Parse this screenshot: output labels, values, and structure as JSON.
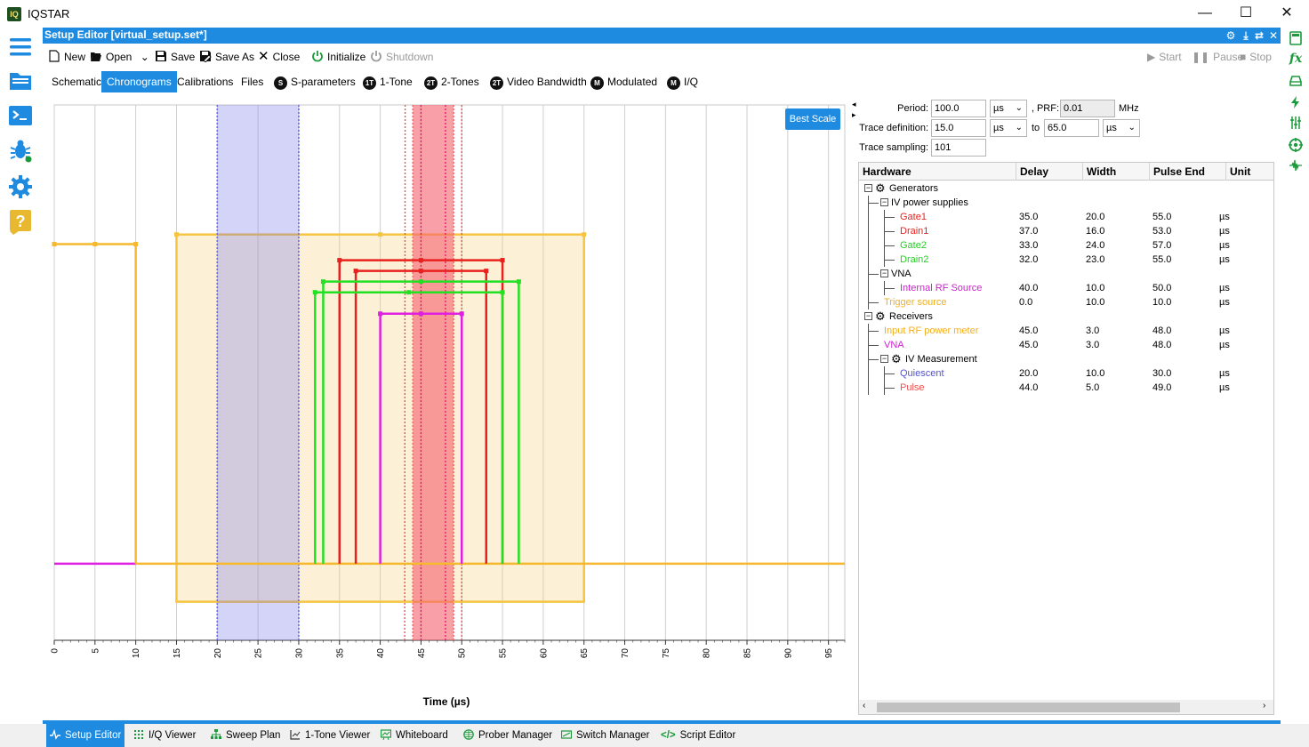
{
  "app": {
    "logo_text": "IQ",
    "title": "IQSTAR"
  },
  "window_controls": {
    "minimize": "—",
    "maximize": "☐",
    "close": "✕"
  },
  "editor": {
    "title": "Setup Editor [virtual_setup.set*]"
  },
  "toolbar": {
    "new": "New",
    "open": "Open",
    "save": "Save",
    "save_as": "Save As",
    "close": "Close",
    "initialize": "Initialize",
    "shutdown": "Shutdown",
    "start": "Start",
    "pause": "Pause",
    "stop": "Stop"
  },
  "tabs": [
    {
      "label": "Schematic"
    },
    {
      "label": "Chronograms",
      "active": true
    },
    {
      "label": "Calibrations"
    },
    {
      "label": "Files"
    },
    {
      "label": "S-parameters",
      "badge": "S"
    },
    {
      "label": "1-Tone",
      "badge": "1T"
    },
    {
      "label": "2-Tones",
      "badge": "2T"
    },
    {
      "label": "Video Bandwidth",
      "badge": "2T"
    },
    {
      "label": "Modulated",
      "badge": "M"
    },
    {
      "label": "I/Q",
      "badge": "M"
    }
  ],
  "chart": {
    "best_scale": "Best Scale",
    "xlabel": "Time (µs)",
    "tick_labels": [
      "0",
      "5",
      "10",
      "15",
      "20",
      "25",
      "30",
      "35",
      "40",
      "45",
      "50",
      "55",
      "60",
      "65",
      "70",
      "75",
      "80",
      "85",
      "90",
      "95"
    ]
  },
  "chart_data": {
    "type": "timing",
    "xlabel": "Time (µs)",
    "xlim": [
      0,
      97
    ],
    "x_ticks": [
      0,
      5,
      10,
      15,
      20,
      25,
      30,
      35,
      40,
      45,
      50,
      55,
      60,
      65,
      70,
      75,
      80,
      85,
      90,
      95
    ],
    "trace_window": {
      "start": 15.0,
      "end": 65.0,
      "color": "#f5c542"
    },
    "iv_windows": [
      {
        "name": "Quiescent",
        "start": 20.0,
        "end": 30.0,
        "color": "#6a6ae8"
      },
      {
        "name": "Pulse",
        "start": 44.0,
        "end": 49.0,
        "color": "#f06e6e"
      }
    ],
    "pulses": [
      {
        "name": "Trigger source",
        "start": 0.0,
        "end": 10.0,
        "color": "#f5b82e",
        "level": 0.74
      },
      {
        "name": "Gate1",
        "start": 35.0,
        "end": 55.0,
        "color": "#e8201e",
        "level": 0.71
      },
      {
        "name": "Drain1",
        "start": 37.0,
        "end": 53.0,
        "color": "#e8201e",
        "level": 0.69
      },
      {
        "name": "Gate2",
        "start": 33.0,
        "end": 57.0,
        "color": "#22e022",
        "level": 0.67
      },
      {
        "name": "Drain2",
        "start": 32.0,
        "end": 55.0,
        "color": "#22e022",
        "level": 0.65
      },
      {
        "name": "Internal RF Source",
        "start": 40.0,
        "end": 50.0,
        "color": "#e020e0",
        "level": 0.61
      }
    ],
    "baseline_color": "#e020e0"
  },
  "settings": {
    "period_label": "Period:",
    "period_value": "100.0",
    "period_unit": "µs",
    "prf_label": ", PRF:",
    "prf_value": "0.01",
    "prf_unit": "MHz",
    "trace_def_label": "Trace definition:",
    "trace_from": "15.0",
    "trace_from_unit": "µs",
    "to_label": "to",
    "trace_to": "65.0",
    "trace_to_unit": "µs",
    "sampling_label": "Trace sampling:",
    "sampling_value": "101"
  },
  "tree": {
    "headers": [
      "Hardware",
      "Delay",
      "Width",
      "Pulse End",
      "Unit"
    ],
    "rows": [
      {
        "label": "Generators",
        "level": 0,
        "toggle": true,
        "gear": true,
        "color": "#000000",
        "delay": "",
        "width": "",
        "end": "",
        "unit": ""
      },
      {
        "label": "IV power supplies",
        "level": 1,
        "toggle": true,
        "color": "#000000",
        "delay": "",
        "width": "",
        "end": "",
        "unit": ""
      },
      {
        "label": "Gate1",
        "level": 2,
        "color": "#e8201e",
        "delay": "35.0",
        "width": "20.0",
        "end": "55.0",
        "unit": "µs"
      },
      {
        "label": "Drain1",
        "level": 2,
        "color": "#e8201e",
        "delay": "37.0",
        "width": "16.0",
        "end": "53.0",
        "unit": "µs"
      },
      {
        "label": "Gate2",
        "level": 2,
        "color": "#22d022",
        "delay": "33.0",
        "width": "24.0",
        "end": "57.0",
        "unit": "µs"
      },
      {
        "label": "Drain2",
        "level": 2,
        "color": "#22d022",
        "delay": "32.0",
        "width": "23.0",
        "end": "55.0",
        "unit": "µs"
      },
      {
        "label": "VNA",
        "level": 1,
        "toggle": true,
        "color": "#000000",
        "delay": "",
        "width": "",
        "end": "",
        "unit": ""
      },
      {
        "label": "Internal RF Source",
        "level": 2,
        "color": "#d020d0",
        "delay": "40.0",
        "width": "10.0",
        "end": "50.0",
        "unit": "µs"
      },
      {
        "label": "Trigger source",
        "level": 1,
        "color": "#f0b020",
        "delay": "0.0",
        "width": "10.0",
        "end": "10.0",
        "unit": "µs"
      },
      {
        "label": "Receivers",
        "level": 0,
        "toggle": true,
        "gear": true,
        "color": "#000000",
        "delay": "",
        "width": "",
        "end": "",
        "unit": ""
      },
      {
        "label": "Input RF power meter",
        "level": 1,
        "color": "#f0b020",
        "delay": "45.0",
        "width": "3.0",
        "end": "48.0",
        "unit": "µs"
      },
      {
        "label": "VNA",
        "level": 1,
        "color": "#d020d0",
        "delay": "45.0",
        "width": "3.0",
        "end": "48.0",
        "unit": "µs"
      },
      {
        "label": "IV Measurement",
        "level": 1,
        "toggle": true,
        "gear": true,
        "color": "#000000",
        "delay": "",
        "width": "",
        "end": "",
        "unit": ""
      },
      {
        "label": "Quiescent",
        "level": 2,
        "color": "#5050d8",
        "delay": "20.0",
        "width": "10.0",
        "end": "30.0",
        "unit": "µs"
      },
      {
        "label": "Pulse",
        "level": 2,
        "color": "#f05050",
        "delay": "44.0",
        "width": "5.0",
        "end": "49.0",
        "unit": "µs"
      }
    ]
  },
  "bottom_tabs": [
    {
      "label": "Setup Editor",
      "active": true
    },
    {
      "label": "I/Q Viewer"
    },
    {
      "label": "Sweep Plan"
    },
    {
      "label": "1-Tone Viewer"
    },
    {
      "label": "Whiteboard"
    },
    {
      "label": "Prober Manager"
    },
    {
      "label": "Switch Manager"
    },
    {
      "label": "Script Editor"
    }
  ],
  "colors": {
    "accent": "#1e8be0",
    "green_icon": "#1a9a3a"
  }
}
